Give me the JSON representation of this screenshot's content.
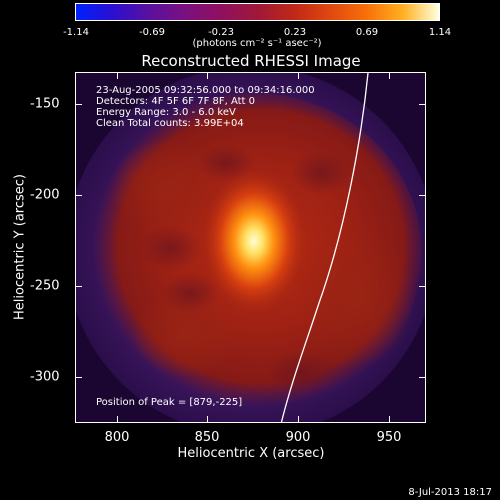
{
  "colorbar": {
    "labels": [
      "-1.14",
      "-0.69",
      "-0.23",
      "0.23",
      "0.69",
      "1.14"
    ],
    "units": "(photons cm⁻² s⁻¹ asec⁻²)"
  },
  "title": "Reconstructed RHESSI Image",
  "annotations": {
    "time": "23-Aug-2005 09:32:56.000 to 09:34:16.000",
    "detectors": "Detectors: 4F 5F 6F 7F 8F, Att 0",
    "energy": "Energy Range: 3.0 - 6.0 keV",
    "clean": "Clean     Total counts: 3.99E+04",
    "peak": "Position of Peak = [879,-225]"
  },
  "axes": {
    "x_title": "Heliocentric X (arcsec)",
    "y_title": "Heliocentric Y (arcsec)",
    "x_ticks": [
      "800",
      "850",
      "900",
      "950"
    ],
    "y_ticks": [
      "-150",
      "-200",
      "-250",
      "-300"
    ],
    "x_range": [
      777,
      970
    ],
    "y_range": [
      -325,
      -132
    ]
  },
  "timestamp": "8-Jul-2013 18:17",
  "colors": {
    "background": "#000000",
    "limb_line": "#ffffff",
    "halo": "#4a1a6a",
    "emission_low": "#8a1a14",
    "emission_peak": "#ffffd8"
  }
}
